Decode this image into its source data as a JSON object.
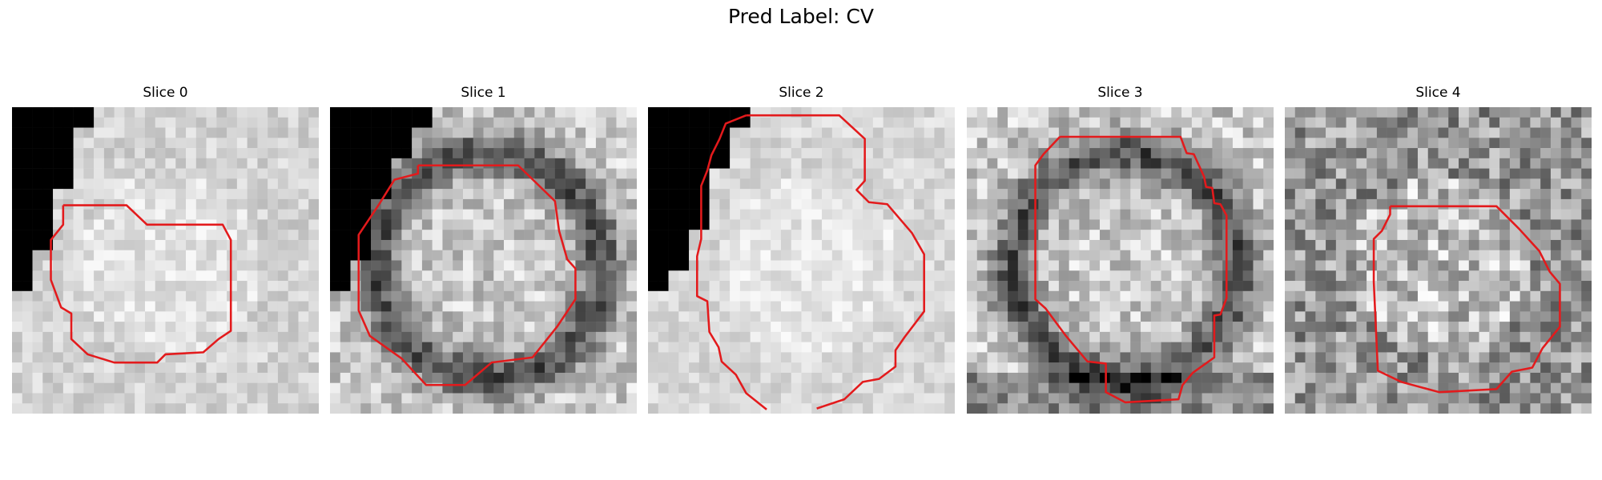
{
  "figure": {
    "title": "Pred Label: CV",
    "contour_color": "#e31a1c",
    "slices": [
      {
        "title": "Slice 0",
        "base_gray": 210,
        "contrast": 0.35
      },
      {
        "title": "Slice 1",
        "base_gray": 150,
        "contrast": 0.65
      },
      {
        "title": "Slice 2",
        "base_gray": 215,
        "contrast": 0.3
      },
      {
        "title": "Slice 3",
        "base_gray": 160,
        "contrast": 0.7
      },
      {
        "title": "Slice 4",
        "base_gray": 140,
        "contrast": 0.9
      }
    ]
  }
}
